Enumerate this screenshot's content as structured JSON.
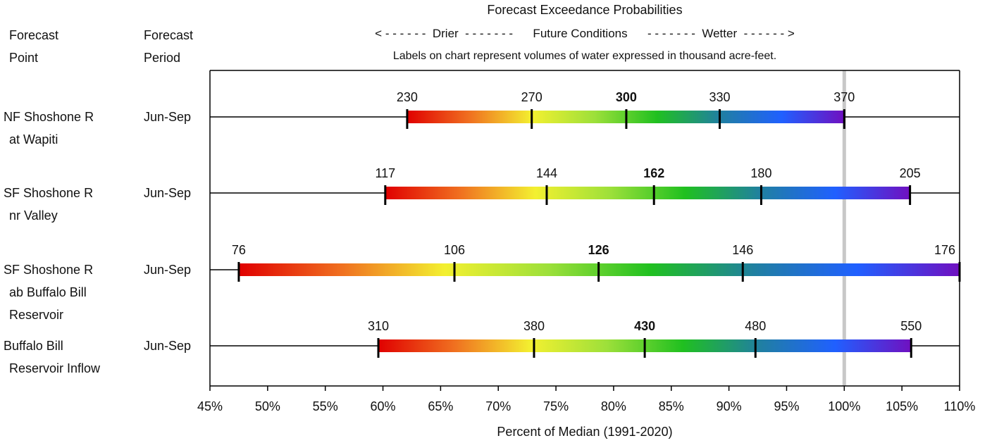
{
  "header": {
    "forecast_point_line1": "Forecast",
    "forecast_point_line2": "Point",
    "forecast_period_line1": "Forecast",
    "forecast_period_line2": "Period",
    "title": "Forecast Exceedance Probabilities",
    "subtitle": "< - - - - - -  Drier  - - - - - - -      Future Conditions      - - - - - - -  Wetter  - - - - - - >",
    "note": "Labels on chart represent volumes of water expressed in thousand acre-feet."
  },
  "chart_data": {
    "type": "bar",
    "title": "Forecast Exceedance Probabilities",
    "xlabel": "Percent of Median (1991-2020)",
    "xlim": [
      45,
      110
    ],
    "xticks": [
      "45%",
      "50%",
      "55%",
      "60%",
      "65%",
      "70%",
      "75%",
      "80%",
      "85%",
      "90%",
      "95%",
      "100%",
      "105%",
      "110%"
    ],
    "median_reference": 100,
    "rows": [
      {
        "point": [
          "NF Shoshone R",
          "at Wapiti"
        ],
        "period": "Jun-Sep",
        "percents": [
          62.1,
          72.9,
          81.1,
          89.2,
          100.0
        ],
        "labels": [
          "230",
          "270",
          "300",
          "330",
          "370"
        ]
      },
      {
        "point": [
          "SF Shoshone R",
          "nr Valley"
        ],
        "period": "Jun-Sep",
        "percents": [
          60.2,
          74.2,
          83.5,
          92.8,
          105.7
        ],
        "labels": [
          "117",
          "144",
          "162",
          "180",
          "205"
        ]
      },
      {
        "point": [
          "SF Shoshone R",
          "ab Buffalo Bill",
          "Reservoir"
        ],
        "period": "Jun-Sep",
        "percents": [
          47.5,
          66.2,
          78.7,
          91.2,
          110.0
        ],
        "labels": [
          "76",
          "106",
          "126",
          "146",
          "176"
        ]
      },
      {
        "point": [
          "Buffalo Bill",
          "Reservoir Inflow"
        ],
        "period": "Jun-Sep",
        "percents": [
          59.6,
          73.1,
          82.7,
          92.3,
          105.8
        ],
        "labels": [
          "310",
          "380",
          "430",
          "480",
          "550"
        ]
      }
    ],
    "colors": {
      "gradient": [
        "#e00000",
        "#f07020",
        "#f3f030",
        "#9de03a",
        "#20c020",
        "#2080a0",
        "#2060ff",
        "#7010c0"
      ],
      "median_line": "#c8c8c8"
    }
  }
}
